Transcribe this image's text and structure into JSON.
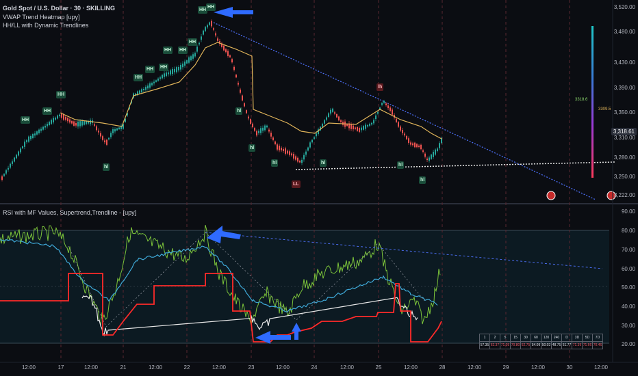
{
  "header": {
    "symbol_line": "Gold Spot / U.S. Dollar · 30 · SKILLING",
    "indicator_1": "VWAP Trend Heatmap [upy]",
    "indicator_2": "HH/LL with Dynamic Trendlines"
  },
  "rsi_panel": {
    "title": "RSI with MF Values, Supertrend,Trendline - [upy]"
  },
  "price_axis": [
    "3,520.00",
    "3,480.00",
    "3,430.00",
    "3,390.00",
    "3,350.00",
    "3,310.00",
    "3,280.00",
    "3,250.00",
    "3,222.00"
  ],
  "current_price": "3,318.61",
  "vwap_labels": {
    "upper": "3318.6",
    "lower": "3309.5"
  },
  "rsi_axis": [
    "90.00",
    "80.00",
    "70.00",
    "60.00",
    "50.00",
    "40.00",
    "30.00",
    "20.00"
  ],
  "time_axis": [
    "12:00",
    "17",
    "12:00",
    "21",
    "12:00",
    "22",
    "12:00",
    "23",
    "12:00",
    "24",
    "12:00",
    "25",
    "12:00",
    "28",
    "12:00",
    "29",
    "12:00",
    "30",
    "12:00"
  ],
  "pivot_labels": [
    {
      "text": "HH",
      "type": "green"
    },
    {
      "text": "HH",
      "type": "green"
    },
    {
      "text": "HH",
      "type": "green"
    },
    {
      "text": "HH",
      "type": "green"
    },
    {
      "text": "HH",
      "type": "green"
    },
    {
      "text": "HH",
      "type": "green"
    },
    {
      "text": "HH",
      "type": "green"
    },
    {
      "text": "HH",
      "type": "green"
    },
    {
      "text": "HH",
      "type": "green"
    },
    {
      "text": "HH",
      "type": "green"
    },
    {
      "text": "HH",
      "type": "green"
    },
    {
      "text": "hl",
      "type": "green"
    },
    {
      "text": "hl",
      "type": "green"
    },
    {
      "text": "hl",
      "type": "green"
    },
    {
      "text": "hl",
      "type": "green"
    },
    {
      "text": "hl",
      "type": "green"
    },
    {
      "text": "hl",
      "type": "green"
    },
    {
      "text": "hl",
      "type": "green"
    },
    {
      "text": "lh",
      "type": "red"
    },
    {
      "text": "LL",
      "type": "red"
    }
  ],
  "mf_table": {
    "headers": [
      "1",
      "2",
      "5",
      "15",
      "30",
      "60",
      "120",
      "240",
      "D",
      "3D",
      "5D",
      "7D"
    ],
    "values": [
      {
        "v": "57.35",
        "dir": "up"
      },
      {
        "v": "62.37",
        "dir": "dn"
      },
      {
        "v": "71.05",
        "dir": "dn"
      },
      {
        "v": "70.80",
        "dir": "dn"
      },
      {
        "v": "62.75",
        "dir": "dn"
      },
      {
        "v": "54.09",
        "dir": "up"
      },
      {
        "v": "50.03",
        "dir": "up"
      },
      {
        "v": "48.75",
        "dir": "up"
      },
      {
        "v": "61.77",
        "dir": "up"
      },
      {
        "v": "71.39",
        "dir": "dn"
      },
      {
        "v": "71.66",
        "dir": "dn"
      },
      {
        "v": "70.46",
        "dir": "dn"
      }
    ]
  },
  "colors": {
    "background": "#0b0d12",
    "up_candle": "#26a69a",
    "down_candle": "#ef5350",
    "vwap": "#e0b45a",
    "trendline": "#5b8ff9",
    "supertrend": "#ff2a2a",
    "rsi": "#7cc43a",
    "rsi_ma": "#3fa9d8",
    "arrow": "#2f6bff"
  }
}
